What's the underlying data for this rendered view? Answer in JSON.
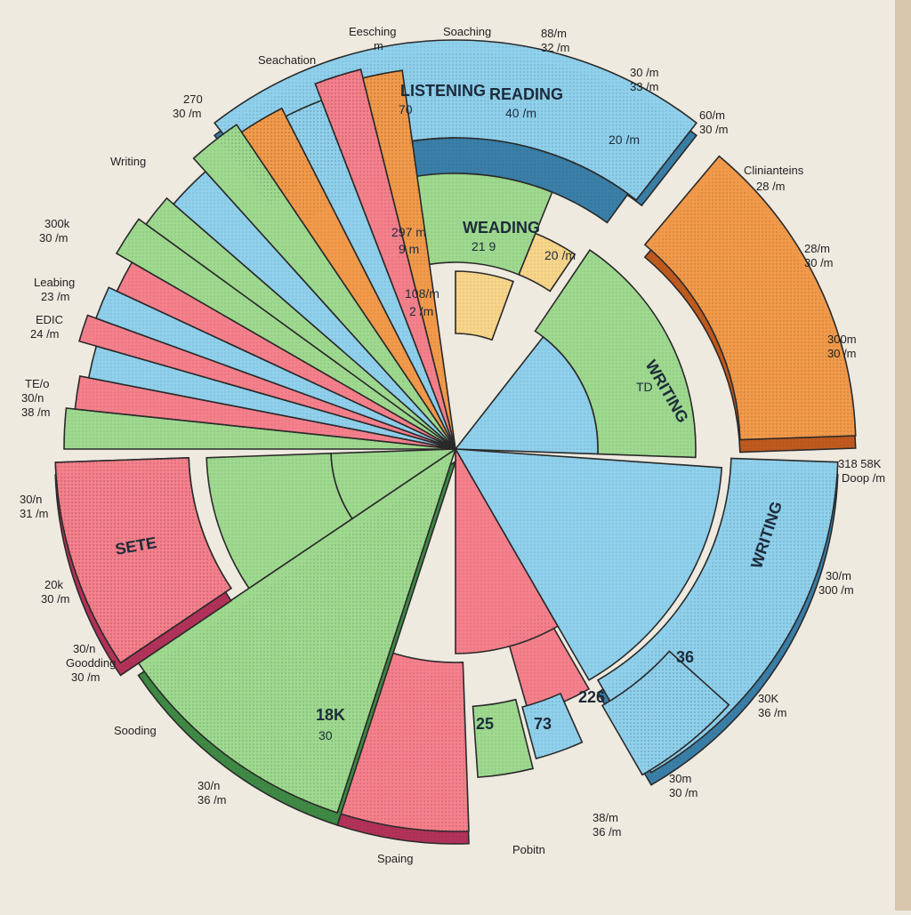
{
  "colors": {
    "background": "#efeae0",
    "blue": "#8fd0ec",
    "blue_dark": "#3a7fa8",
    "green": "#9ed98f",
    "green_dark": "#3f8a45",
    "pink": "#f5808c",
    "pink_dark": "#b2325a",
    "orange": "#f29a4a",
    "orange_dark": "#c05a1e",
    "yellow": "#f7d58a",
    "stroke": "#2a2a2a"
  },
  "chart_data": {
    "type": "pie",
    "title": "",
    "style": "3d exploded multi-ring pie",
    "sectors": [
      {
        "name": "LISTENING",
        "sub": "70",
        "color": "blue"
      },
      {
        "name": "READING",
        "sub": "40 /m",
        "color": "blue"
      },
      {
        "name": "",
        "sub": "20 /m",
        "color": "blue"
      },
      {
        "name": "",
        "sub": "",
        "color": "orange"
      },
      {
        "name": "WRITING",
        "sub": "",
        "color": "blue"
      },
      {
        "name": "",
        "sub": "",
        "color": "pink"
      },
      {
        "name": "SETE",
        "sub": "",
        "color": "pink"
      },
      {
        "name": "",
        "sub": "",
        "color": "green"
      },
      {
        "name": "",
        "sub": "",
        "color": "orange"
      }
    ],
    "inner_labels": {
      "weading": "WEADING",
      "weading_sub": "21 9",
      "writing_inner": "WRITING",
      "writing_sub": "TD",
      "dr_label": "297 m",
      "dr_sub": "9 m",
      "c1": "108/m",
      "c2": "2 /m",
      "num_a": "20 /m",
      "num_b": "25",
      "num_c": "73",
      "num_d": "226",
      "num_e": "18K",
      "num_f": "30",
      "num_g": "36"
    }
  },
  "outer_labels": {
    "top_left_title": "Eesching",
    "top_left_sub": "m",
    "top_mid_title": "Soaching",
    "top_right_1": "88/m",
    "top_right_1b": "32 /m",
    "left_top": "Seachation",
    "right_a": "30 /m",
    "right_a2": "33 /m",
    "right_b": "60/m",
    "right_b2": "30 /m",
    "right_c": "Clinianteins",
    "right_c2": "28 /m",
    "right_d": "28/m",
    "right_d2": "30 /m",
    "right_e": "300m",
    "right_e2": "30 /m",
    "right_f": "318 58K",
    "right_f2": "Doop /m",
    "right_g": "30/m",
    "right_g2": "300 /m",
    "right_h": "30K",
    "right_h2": "36 /m",
    "bottom_right": "30m",
    "bottom_right2": "30 /m",
    "bottom_rr": "38/m",
    "bottom_rr2": "36 /m",
    "bottom_mid": "Pobitn",
    "bottom_left_mid": "Spaing",
    "left_1": "Writing",
    "left_2": "270",
    "left_2b": "30 /m",
    "left_3": "300k",
    "left_3b": "30 /m",
    "left_4": "Leabing",
    "left_4b": "23 /m",
    "left_5": "EDIC",
    "left_5b": "24 /m",
    "left_6": "TE/o",
    "left_6b": "30/n",
    "left_6c": "38 /m",
    "left_7": "30/n",
    "left_7b": "31 /m",
    "left_8": "20k",
    "left_8b": "30 /m",
    "left_9": "30/n",
    "left_9b": "Goodding",
    "left_9c": "30 /m",
    "left_10": "Sooding",
    "left_11": "30/n",
    "left_11b": "36 /m"
  }
}
